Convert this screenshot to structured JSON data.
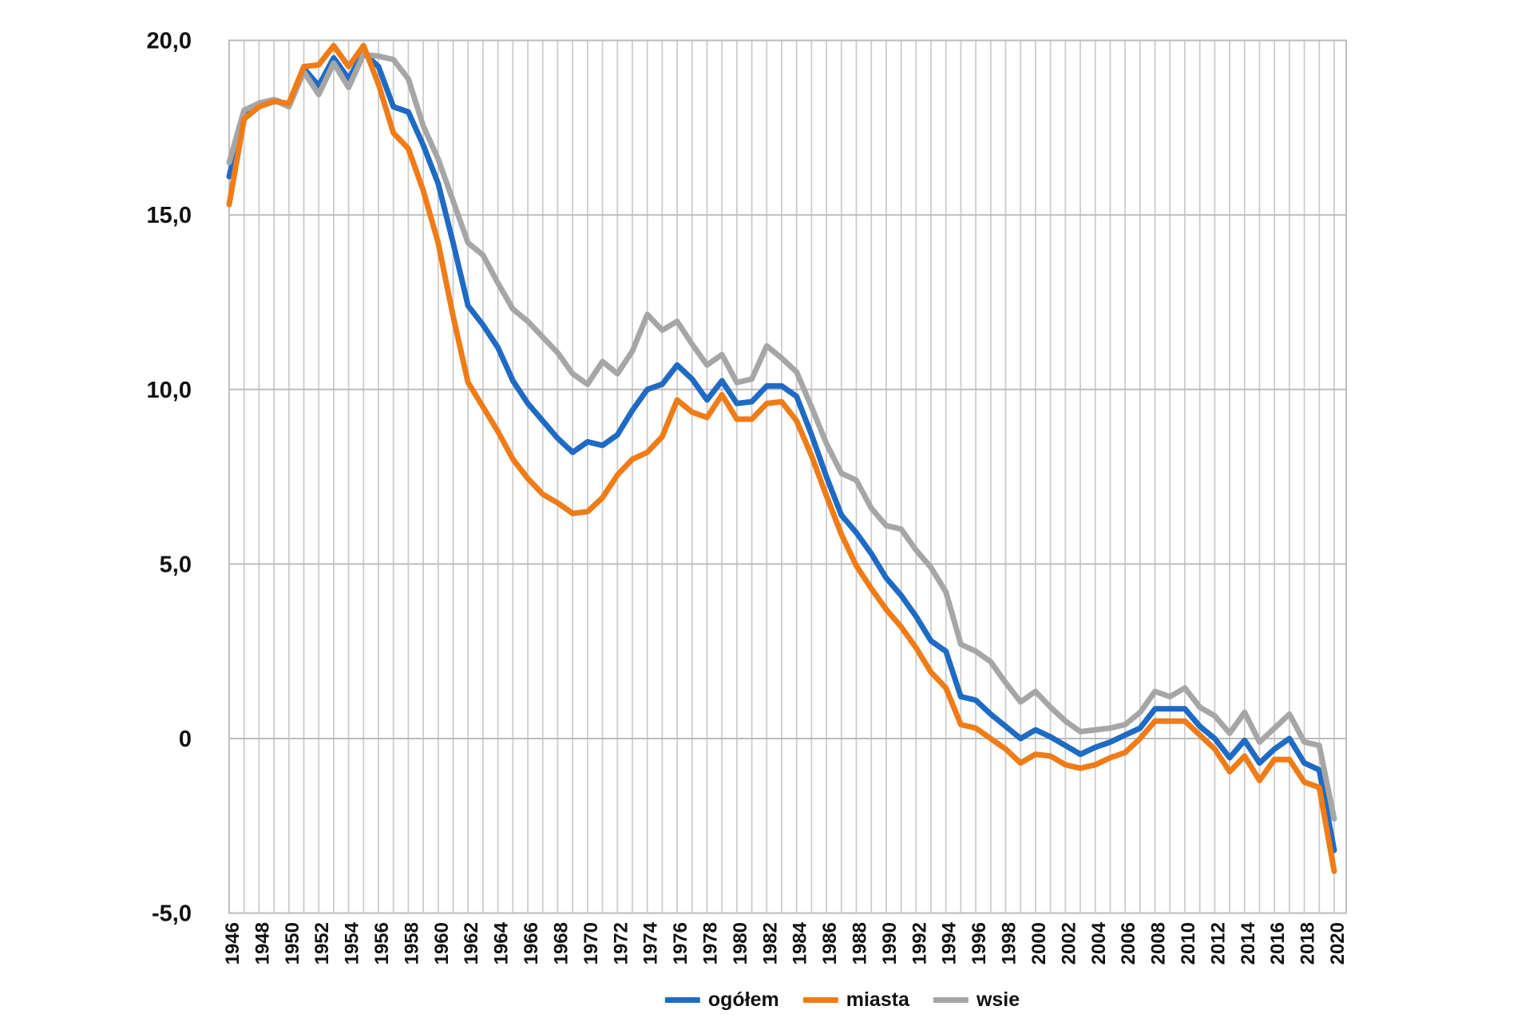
{
  "chart_data": {
    "type": "line",
    "title": "",
    "xlabel": "",
    "ylabel": "",
    "x": [
      1946,
      1947,
      1948,
      1949,
      1950,
      1951,
      1952,
      1953,
      1954,
      1955,
      1956,
      1957,
      1958,
      1959,
      1960,
      1961,
      1962,
      1963,
      1964,
      1965,
      1966,
      1967,
      1968,
      1969,
      1970,
      1971,
      1972,
      1973,
      1974,
      1975,
      1976,
      1977,
      1978,
      1979,
      1980,
      1981,
      1982,
      1983,
      1984,
      1985,
      1986,
      1987,
      1988,
      1989,
      1990,
      1991,
      1992,
      1993,
      1994,
      1995,
      1996,
      1997,
      1998,
      1999,
      2000,
      2001,
      2002,
      2003,
      2004,
      2005,
      2006,
      2007,
      2008,
      2009,
      2010,
      2011,
      2012,
      2013,
      2014,
      2015,
      2016,
      2017,
      2018,
      2019,
      2020
    ],
    "x_label_step": 2,
    "ylim": [
      -5,
      20
    ],
    "y_ticks": [
      20,
      15,
      10,
      5,
      0,
      -5
    ],
    "y_tick_labels": [
      "20,0",
      "15,0",
      "10,0",
      "5,0",
      "0",
      "-5,0"
    ],
    "grid": "both",
    "legend_position": "bottom-center",
    "z_order": [
      0,
      2,
      1
    ],
    "series": [
      {
        "name": "ogółem",
        "color": "#1F6BC4",
        "values": [
          16.1,
          17.9,
          18.2,
          18.3,
          18.15,
          19.2,
          18.7,
          19.5,
          18.9,
          19.65,
          19.25,
          18.1,
          17.95,
          17.0,
          15.9,
          14.2,
          12.4,
          11.85,
          11.2,
          10.25,
          9.6,
          9.1,
          8.6,
          8.2,
          8.5,
          8.4,
          8.7,
          9.4,
          10.0,
          10.15,
          10.7,
          10.3,
          9.7,
          10.25,
          9.6,
          9.65,
          10.1,
          10.1,
          9.8,
          8.7,
          7.5,
          6.4,
          5.9,
          5.3,
          4.6,
          4.1,
          3.5,
          2.8,
          2.5,
          1.2,
          1.1,
          0.7,
          0.35,
          0.0,
          0.25,
          0.05,
          -0.2,
          -0.45,
          -0.25,
          -0.1,
          0.1,
          0.3,
          0.85,
          0.85,
          0.85,
          0.35,
          0.0,
          -0.55,
          -0.05,
          -0.7,
          -0.3,
          0.0,
          -0.7,
          -0.9,
          -3.2
        ]
      },
      {
        "name": "miasta",
        "color": "#F07C18",
        "values": [
          15.3,
          17.75,
          18.1,
          18.25,
          18.2,
          19.25,
          19.3,
          19.85,
          19.25,
          19.85,
          18.75,
          17.35,
          16.9,
          15.7,
          14.2,
          12.1,
          10.2,
          9.5,
          8.8,
          8.0,
          7.45,
          7.0,
          6.75,
          6.45,
          6.5,
          6.9,
          7.55,
          8.0,
          8.2,
          8.65,
          9.7,
          9.35,
          9.2,
          9.85,
          9.15,
          9.15,
          9.6,
          9.65,
          9.1,
          8.1,
          6.95,
          5.85,
          4.95,
          4.3,
          3.7,
          3.2,
          2.6,
          1.9,
          1.45,
          0.4,
          0.3,
          0.0,
          -0.3,
          -0.7,
          -0.45,
          -0.5,
          -0.75,
          -0.85,
          -0.75,
          -0.55,
          -0.4,
          0.0,
          0.5,
          0.5,
          0.5,
          0.1,
          -0.3,
          -0.95,
          -0.5,
          -1.2,
          -0.6,
          -0.6,
          -1.25,
          -1.4,
          -3.8
        ]
      },
      {
        "name": "wsie",
        "color": "#A6A6A6",
        "values": [
          16.5,
          18.0,
          18.2,
          18.3,
          18.1,
          19.1,
          18.45,
          19.35,
          18.65,
          19.6,
          19.55,
          19.45,
          18.9,
          17.55,
          16.6,
          15.4,
          14.2,
          13.85,
          13.05,
          12.3,
          11.95,
          11.5,
          11.05,
          10.45,
          10.15,
          10.8,
          10.45,
          11.1,
          12.15,
          11.7,
          11.95,
          11.3,
          10.7,
          11.0,
          10.2,
          10.3,
          11.25,
          10.9,
          10.5,
          9.5,
          8.45,
          7.6,
          7.4,
          6.6,
          6.1,
          6.0,
          5.4,
          4.9,
          4.2,
          2.7,
          2.5,
          2.2,
          1.6,
          1.05,
          1.35,
          0.9,
          0.5,
          0.2,
          0.25,
          0.3,
          0.4,
          0.75,
          1.35,
          1.2,
          1.45,
          0.9,
          0.65,
          0.15,
          0.75,
          -0.1,
          0.3,
          0.7,
          -0.1,
          -0.2,
          -2.3
        ]
      }
    ]
  },
  "style": {
    "background": "#ffffff",
    "grid_vertical_color": "#cccccc",
    "grid_horizontal_color": "#bdbdbd",
    "plot_border_color": "#bfbfbf",
    "text_color": "#111111",
    "line_width": 7
  }
}
